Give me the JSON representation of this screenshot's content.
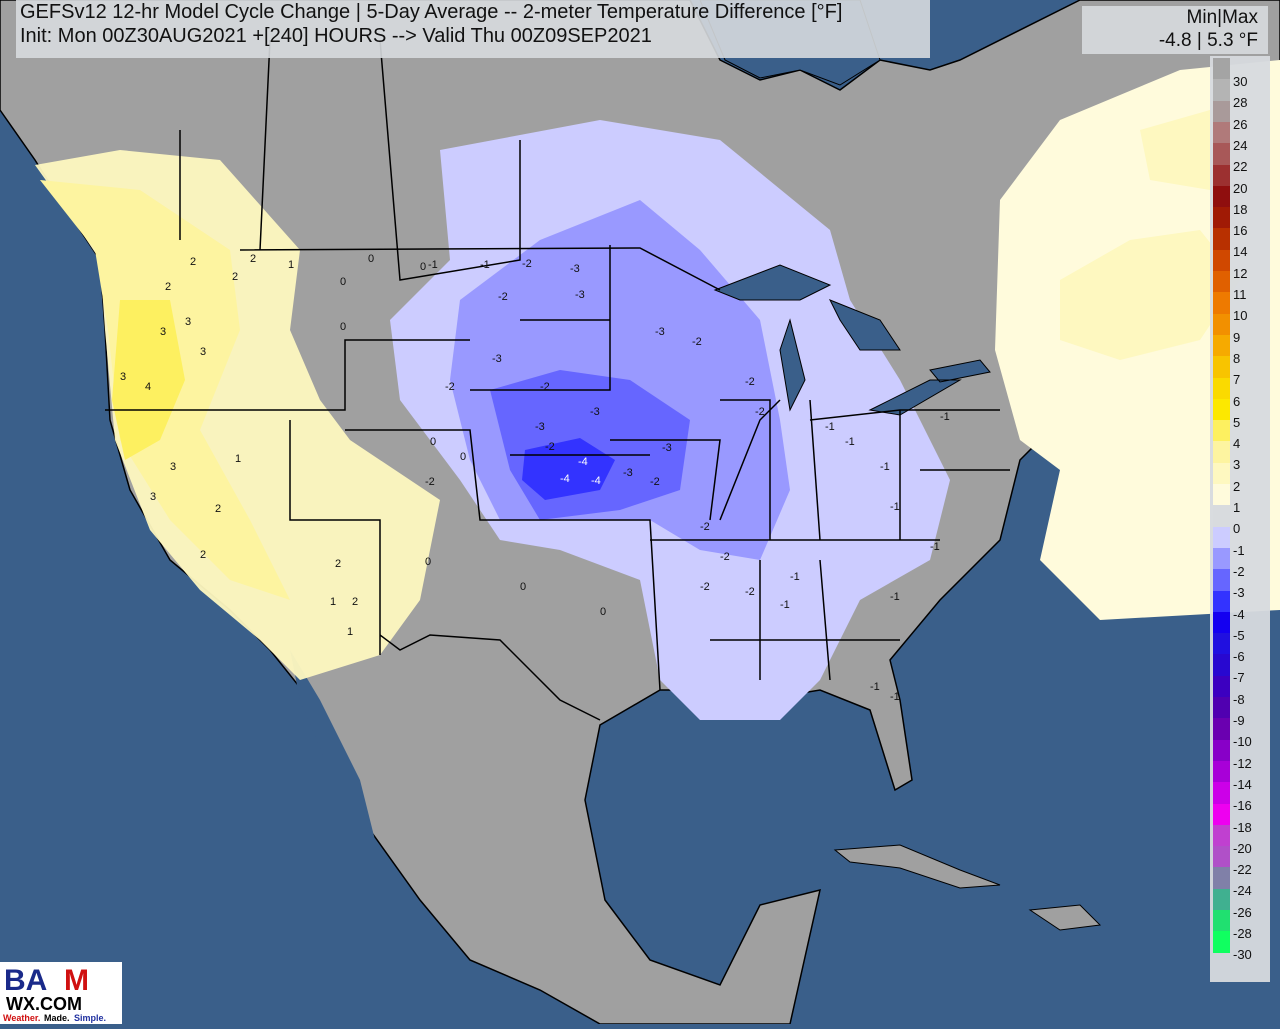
{
  "header": {
    "title_line1": "GEFSv12 12-hr Model Cycle Change | 5-Day Average -- 2-meter Temperature Difference [°F]",
    "title_line2": "Init: Mon 00Z30AUG2021 +[240] HOURS --> Valid Thu 00Z09SEP2021"
  },
  "minmax": {
    "label": "Min|Max",
    "value": "-4.8 | 5.3 °F"
  },
  "legend": [
    {
      "label": "30",
      "color": "#a4a4a4"
    },
    {
      "label": "28",
      "color": "#b4b4b4"
    },
    {
      "label": "26",
      "color": "#a99a9a"
    },
    {
      "label": "24",
      "color": "#b07a7a"
    },
    {
      "label": "22",
      "color": "#a85858"
    },
    {
      "label": "20",
      "color": "#9c3030"
    },
    {
      "label": "18",
      "color": "#8f0e0e"
    },
    {
      "label": "16",
      "color": "#a01a05"
    },
    {
      "label": "14",
      "color": "#b83000"
    },
    {
      "label": "12",
      "color": "#d04800"
    },
    {
      "label": "11",
      "color": "#e06000"
    },
    {
      "label": "10",
      "color": "#ee7a00"
    },
    {
      "label": "9",
      "color": "#f29000"
    },
    {
      "label": "8",
      "color": "#f6aa00"
    },
    {
      "label": "7",
      "color": "#f8c400"
    },
    {
      "label": "6",
      "color": "#fada00"
    },
    {
      "label": "5",
      "color": "#fce800"
    },
    {
      "label": "4",
      "color": "#fdf060"
    },
    {
      "label": "3",
      "color": "#fdf4a0"
    },
    {
      "label": "2",
      "color": "#fef8c0"
    },
    {
      "label": "1",
      "color": "#fffbdc"
    },
    {
      "label": "0",
      "color": "#d8dbde"
    },
    {
      "label": "-1",
      "color": "#ccccff"
    },
    {
      "label": "-2",
      "color": "#9999ff"
    },
    {
      "label": "-3",
      "color": "#6666ff"
    },
    {
      "label": "-4",
      "color": "#3333ff"
    },
    {
      "label": "-5",
      "color": "#1400f0"
    },
    {
      "label": "-6",
      "color": "#2010e0"
    },
    {
      "label": "-7",
      "color": "#2808d0"
    },
    {
      "label": "-8",
      "color": "#3c00c0"
    },
    {
      "label": "-9",
      "color": "#5000b0"
    },
    {
      "label": "-10",
      "color": "#6a00b0"
    },
    {
      "label": "-12",
      "color": "#8800c8"
    },
    {
      "label": "-14",
      "color": "#a800d8"
    },
    {
      "label": "-16",
      "color": "#cc00e8"
    },
    {
      "label": "-18",
      "color": "#ee00f0"
    },
    {
      "label": "-20",
      "color": "#c040d0"
    },
    {
      "label": "-22",
      "color": "#b050c8"
    },
    {
      "label": "-24",
      "color": "#8080a8"
    },
    {
      "label": "-26",
      "color": "#40b090"
    },
    {
      "label": "-28",
      "color": "#20e070"
    },
    {
      "label": "-30",
      "color": "#10ff60"
    }
  ],
  "map": {
    "ocean_color": "#3a5f8a",
    "land_color": "#a0a0a0",
    "station_values": [
      "2",
      "2",
      "3",
      "3",
      "3",
      "4",
      "3",
      "3",
      "2",
      "1",
      "2",
      "2",
      "1",
      "3",
      "2",
      "2",
      "1",
      "1",
      "2",
      "0",
      "0",
      "0",
      "-1",
      "-1",
      "-2",
      "-2",
      "-3",
      "-3",
      "-3",
      "-2",
      "-3",
      "-3",
      "-2",
      "-4",
      "-4",
      "-4",
      "-3",
      "-3",
      "-2",
      "-2",
      "-2",
      "-2",
      "-2",
      "-1",
      "-1",
      "-1",
      "-1",
      "-1",
      "-1",
      "-1",
      "-1",
      "0",
      "0",
      "0",
      "0",
      "0",
      "0",
      "-2",
      "-2",
      "-1",
      "-1",
      "-2",
      "-2",
      "-3",
      "-2",
      "-1"
    ]
  },
  "logo": {
    "text_top": "BAM",
    "text_mid": "WX.COM",
    "tagline": "Weather. Made. Simple."
  }
}
